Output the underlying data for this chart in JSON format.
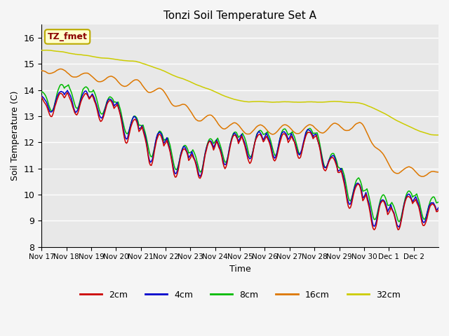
{
  "title": "Tonzi Soil Temperature Set A",
  "xlabel": "Time",
  "ylabel": "Soil Temperature (C)",
  "ylim": [
    8.0,
    16.5
  ],
  "xlim": [
    0,
    16
  ],
  "bg_color": "#e8e8e8",
  "grid_color": "#ffffff",
  "series_colors": {
    "2cm": "#cc0000",
    "4cm": "#0000cc",
    "8cm": "#00bb00",
    "16cm": "#dd7700",
    "32cm": "#cccc00"
  },
  "xtick_labels": [
    "Nov 17",
    "Nov 18",
    "Nov 19",
    "Nov 20",
    "Nov 21",
    "Nov 22",
    "Nov 23",
    "Nov 24",
    "Nov 25",
    "Nov 26",
    "Nov 27",
    "Nov 28",
    "Nov 29",
    "Nov 30",
    "Dec 1",
    "Dec 2"
  ],
  "ytick_vals": [
    8.0,
    9.0,
    10.0,
    11.0,
    12.0,
    13.0,
    14.0,
    15.0,
    16.0
  ],
  "legend_label": "TZ_fmet",
  "legend_box_color": "#ffffcc",
  "legend_box_edge": "#bbaa00",
  "figsize": [
    6.4,
    4.8
  ],
  "dpi": 100
}
